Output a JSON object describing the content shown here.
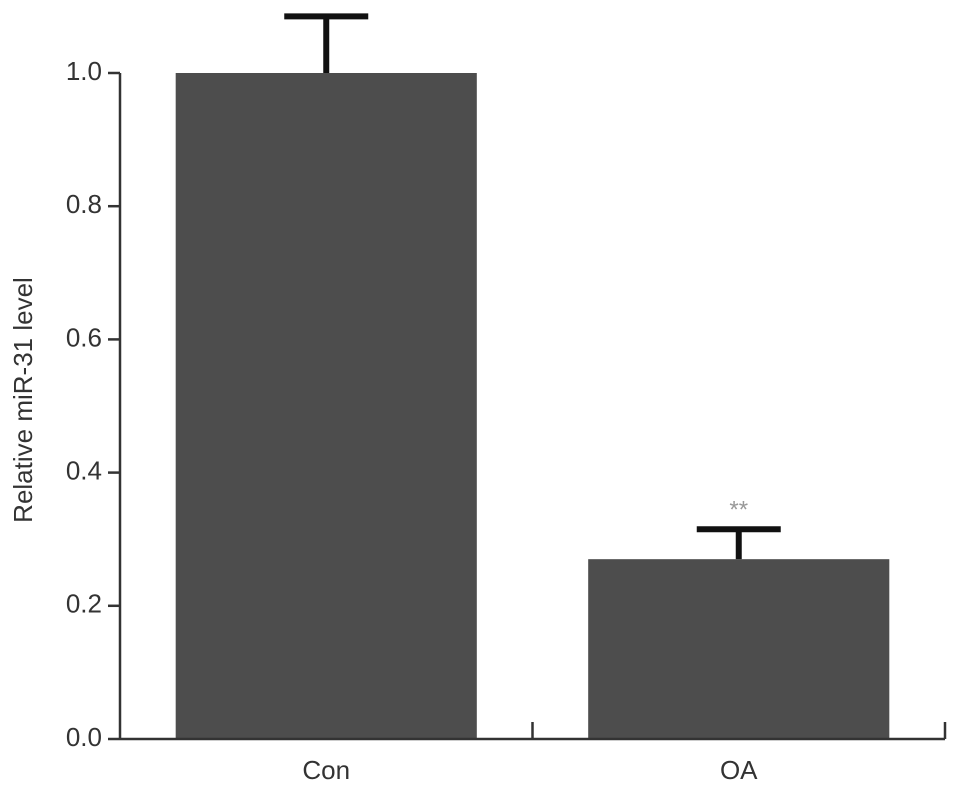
{
  "chart_data": {
    "type": "bar",
    "y_label": "Relative miR-31 level",
    "categories": [
      "Con",
      "OA"
    ],
    "values": [
      1.0,
      0.27
    ],
    "errors": [
      0.085,
      0.045
    ],
    "color": "#4d4d4d",
    "error_color": "#111111",
    "annotation": "**",
    "annotation_color": "#999999",
    "ylim": [
      0,
      1.0
    ],
    "yticks": [
      {
        "value": 0,
        "label": "0.0"
      },
      0.2,
      0.4,
      0.6,
      0.8,
      {
        "value": 1.0,
        "label": "1.0"
      }
    ],
    "grid": false
  }
}
